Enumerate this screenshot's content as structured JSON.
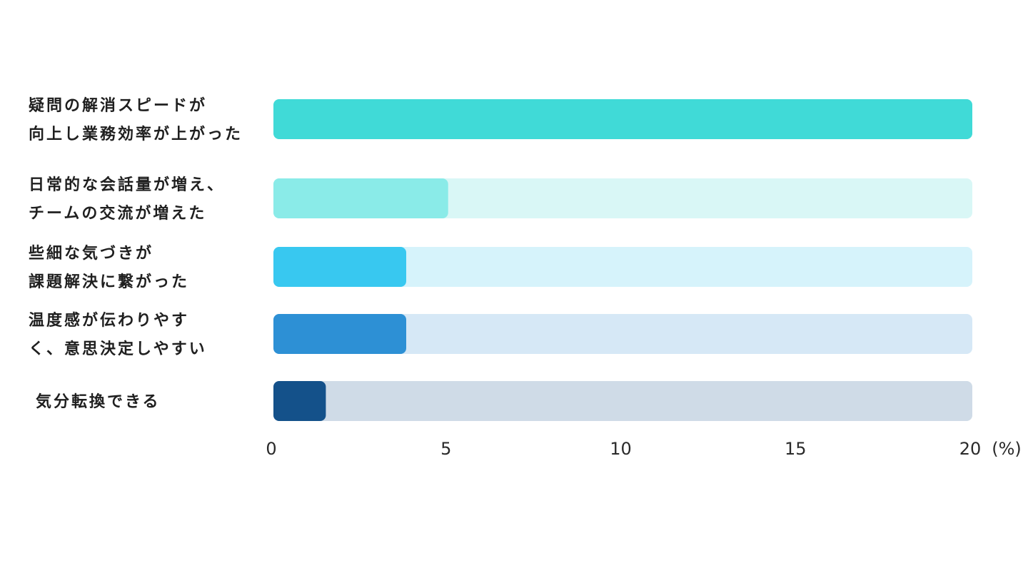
{
  "chart_data": {
    "type": "bar",
    "orientation": "horizontal",
    "categories": [
      [
        "疑問の解消スピードが",
        "向上し業務効率が上がった"
      ],
      [
        "日常的な会話量が増え、",
        "チームの交流が増えた"
      ],
      [
        "些細な気づきが",
        "課題解決に繋がった"
      ],
      [
        "温度感が伝わりやす",
        "く、意思決定しやすい"
      ],
      [
        "気分転換できる"
      ]
    ],
    "values": [
      20,
      5,
      3.8,
      3.8,
      1.5
    ],
    "xlim": [
      0,
      20
    ],
    "xticks": [
      "0",
      "5",
      "10",
      "15",
      "20"
    ],
    "xunit": "(%)",
    "grid": false,
    "legend": "none",
    "colors": {
      "bars": [
        "#40DAD7",
        "#8AEBE8",
        "#38C8F0",
        "#2D90D5",
        "#14518A"
      ],
      "tracks": [
        "#D9F7F6",
        "#D9F7F6",
        "#D6F3FB",
        "#D6E8F6",
        "#CFDBE7"
      ]
    }
  }
}
